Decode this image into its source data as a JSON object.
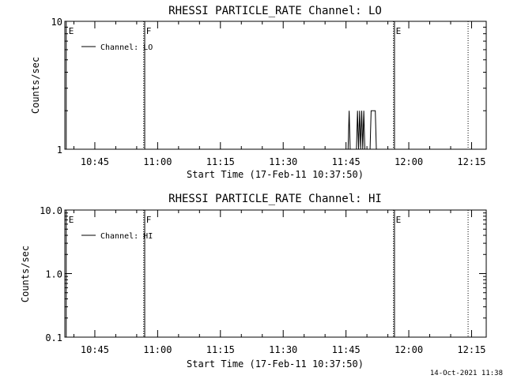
{
  "footer_timestamp": "14-Oct-2021 11:38",
  "chart_data": [
    {
      "type": "line",
      "title": "RHESSI PARTICLE_RATE Channel: LO",
      "xlabel": "Start Time (17-Feb-11 10:37:50)",
      "ylabel": "Counts/sec",
      "yscale": "log",
      "ylim": [
        1,
        10
      ],
      "ytick_values": [
        1,
        10
      ],
      "ytick_labels": [
        "1",
        "10"
      ],
      "xlim": [
        "10:37:50",
        "12:18:30"
      ],
      "xtick_labels": [
        "10:45",
        "11:00",
        "11:15",
        "11:30",
        "11:45",
        "12:00",
        "12:15"
      ],
      "xtick_values": [
        "10:45",
        "11:00",
        "11:15",
        "11:30",
        "11:45",
        "12:00",
        "12:15"
      ],
      "legend_entries": [
        "Channel: LO"
      ],
      "legend_position": "top-left",
      "vertical_markers": [
        {
          "time": "10:38:10",
          "label": "E",
          "style": "solid"
        },
        {
          "time": "10:56:40",
          "label": "F",
          "style": "dotted"
        },
        {
          "time": "10:56:55",
          "label": "",
          "style": "solid"
        },
        {
          "time": "11:56:20",
          "label": "E",
          "style": "dotted"
        },
        {
          "time": "11:56:35",
          "label": "",
          "style": "solid"
        },
        {
          "time": "12:14:10",
          "label": "",
          "style": "dotted"
        }
      ],
      "series": [
        {
          "name": "Channel: LO",
          "x": [
            "11:45:00",
            "11:45:15",
            "11:45:30",
            "11:45:45",
            "11:46:00",
            "11:46:15",
            "11:46:30",
            "11:46:45",
            "11:47:00",
            "11:47:15",
            "11:47:30",
            "11:47:45",
            "11:48:00",
            "11:48:15",
            "11:48:30",
            "11:48:45",
            "11:49:00",
            "11:49:15",
            "11:49:30",
            "11:49:45",
            "11:50:00",
            "11:50:15",
            "11:50:30",
            "11:50:45",
            "11:51:00",
            "11:51:15",
            "11:51:30",
            "11:51:45",
            "11:52:00",
            "11:52:15",
            "11:52:30",
            "11:52:45",
            "11:53:00"
          ],
          "values": [
            1,
            1,
            1,
            2,
            1,
            1,
            1,
            1,
            1,
            1,
            1,
            2,
            1,
            2,
            1,
            2,
            1,
            2,
            1,
            1,
            1,
            1,
            1,
            1,
            2,
            2,
            2,
            2,
            2,
            1,
            1,
            1,
            1
          ]
        }
      ]
    },
    {
      "type": "line",
      "title": "RHESSI PARTICLE_RATE Channel: HI",
      "xlabel": "Start Time (17-Feb-11 10:37:50)",
      "ylabel": "Counts/sec",
      "yscale": "log",
      "ylim": [
        0.1,
        10
      ],
      "ytick_values": [
        0.1,
        1,
        10
      ],
      "ytick_labels": [
        "0.1",
        "1.0",
        "10.0"
      ],
      "xlim": [
        "10:37:50",
        "12:18:30"
      ],
      "xtick_labels": [
        "10:45",
        "11:00",
        "11:15",
        "11:30",
        "11:45",
        "12:00",
        "12:15"
      ],
      "xtick_values": [
        "10:45",
        "11:00",
        "11:15",
        "11:30",
        "11:45",
        "12:00",
        "12:15"
      ],
      "legend_entries": [
        "Channel: HI"
      ],
      "legend_position": "top-left",
      "vertical_markers": [
        {
          "time": "10:38:10",
          "label": "E",
          "style": "solid"
        },
        {
          "time": "10:56:40",
          "label": "F",
          "style": "dotted"
        },
        {
          "time": "10:56:55",
          "label": "",
          "style": "solid"
        },
        {
          "time": "11:56:20",
          "label": "E",
          "style": "dotted"
        },
        {
          "time": "11:56:35",
          "label": "",
          "style": "solid"
        },
        {
          "time": "12:14:10",
          "label": "",
          "style": "dotted"
        }
      ],
      "series": [
        {
          "name": "Channel: HI",
          "x": [],
          "values": []
        }
      ]
    }
  ]
}
